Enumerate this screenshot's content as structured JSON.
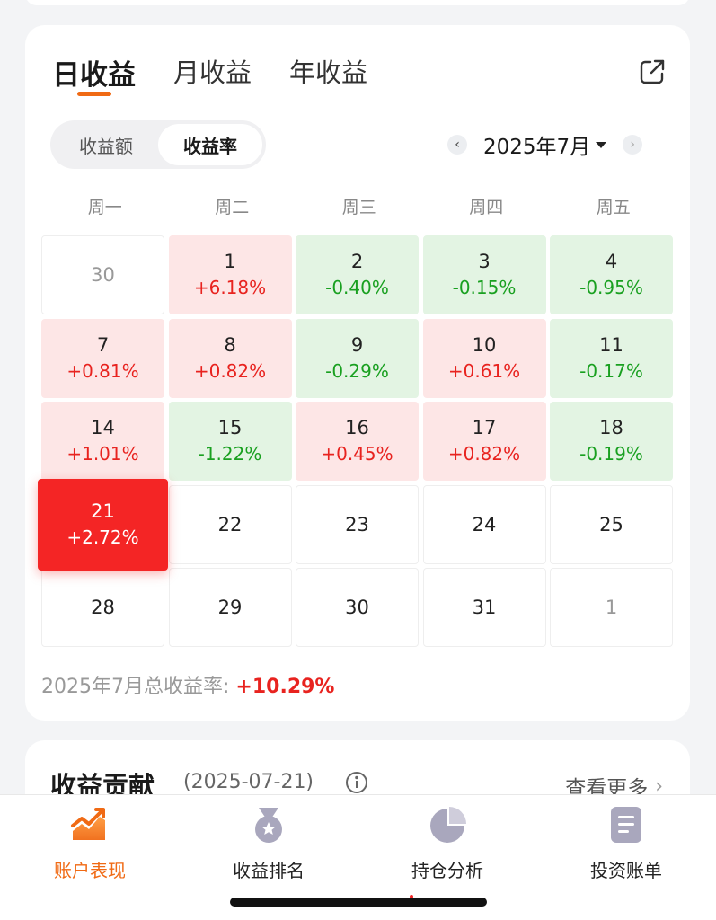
{
  "tabs": [
    {
      "label": "日收益",
      "active": true
    },
    {
      "label": "月收益",
      "active": false
    },
    {
      "label": "年收益",
      "active": false
    }
  ],
  "toggle": {
    "options": [
      "收益额",
      "收益率"
    ],
    "selected": "收益率"
  },
  "month_nav": {
    "label": "2025年7月",
    "prev_icon": "chevron-left-icon",
    "next_icon": "chevron-right-icon"
  },
  "weekdays": [
    "周一",
    "周二",
    "周三",
    "周四",
    "周五"
  ],
  "calendar": [
    {
      "day": "30",
      "pct": "",
      "type": "other"
    },
    {
      "day": "1",
      "pct": "+6.18%",
      "type": "up"
    },
    {
      "day": "2",
      "pct": "-0.40%",
      "type": "down"
    },
    {
      "day": "3",
      "pct": "-0.15%",
      "type": "down"
    },
    {
      "day": "4",
      "pct": "-0.95%",
      "type": "down"
    },
    {
      "day": "7",
      "pct": "+0.81%",
      "type": "up"
    },
    {
      "day": "8",
      "pct": "+0.82%",
      "type": "up"
    },
    {
      "day": "9",
      "pct": "-0.29%",
      "type": "down"
    },
    {
      "day": "10",
      "pct": "+0.61%",
      "type": "up"
    },
    {
      "day": "11",
      "pct": "-0.17%",
      "type": "down"
    },
    {
      "day": "14",
      "pct": "+1.01%",
      "type": "up"
    },
    {
      "day": "15",
      "pct": "-1.22%",
      "type": "down"
    },
    {
      "day": "16",
      "pct": "+0.45%",
      "type": "up"
    },
    {
      "day": "17",
      "pct": "+0.82%",
      "type": "up"
    },
    {
      "day": "18",
      "pct": "-0.19%",
      "type": "down"
    },
    {
      "day": "21",
      "pct": "+2.72%",
      "type": "selected"
    },
    {
      "day": "22",
      "pct": "",
      "type": "empty"
    },
    {
      "day": "23",
      "pct": "",
      "type": "empty"
    },
    {
      "day": "24",
      "pct": "",
      "type": "empty"
    },
    {
      "day": "25",
      "pct": "",
      "type": "empty"
    },
    {
      "day": "28",
      "pct": "",
      "type": "empty"
    },
    {
      "day": "29",
      "pct": "",
      "type": "empty"
    },
    {
      "day": "30",
      "pct": "",
      "type": "empty"
    },
    {
      "day": "31",
      "pct": "",
      "type": "empty"
    },
    {
      "day": "1",
      "pct": "",
      "type": "other"
    }
  ],
  "summary": {
    "label": "2025年7月总收益率:",
    "value": "+10.29%"
  },
  "contribution": {
    "title": "收益贡献",
    "date": "(2025-07-21)",
    "more": "查看更多"
  },
  "bottom_nav": [
    {
      "label": "账户表现",
      "icon": "trend-chart-icon",
      "active": true
    },
    {
      "label": "收益排名",
      "icon": "medal-icon",
      "active": false
    },
    {
      "label": "持仓分析",
      "icon": "pie-chart-icon",
      "active": false
    },
    {
      "label": "投资账单",
      "icon": "bill-icon",
      "active": false
    }
  ],
  "colors": {
    "accent": "#f06a14",
    "up": "#e8231f",
    "down": "#19a020",
    "selected": "#f42525"
  }
}
